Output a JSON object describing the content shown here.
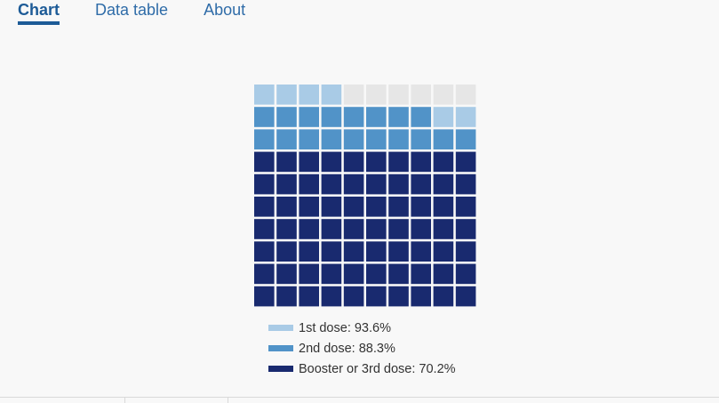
{
  "tabs": [
    {
      "label": "Chart",
      "active": true
    },
    {
      "label": "Data table",
      "active": false
    },
    {
      "label": "About",
      "active": false
    }
  ],
  "chart_data": {
    "type": "waffle",
    "grid": {
      "rows": 10,
      "cols": 10
    },
    "series": [
      {
        "name": "1st dose",
        "value": 93.6,
        "color": "#a9cbe6"
      },
      {
        "name": "2nd dose",
        "value": 88.3,
        "color": "#5193c8"
      },
      {
        "name": "Booster or 3rd dose",
        "value": 70.2,
        "color": "#192a6f"
      }
    ],
    "empty_color": "#e6e6e6",
    "legend": [
      {
        "label": "1st dose: 93.6%",
        "color": "#a9cbe6"
      },
      {
        "label": "2nd dose: 88.3%",
        "color": "#5193c8"
      },
      {
        "label": "Booster or 3rd dose: 70.2%",
        "color": "#192a6f"
      }
    ]
  }
}
